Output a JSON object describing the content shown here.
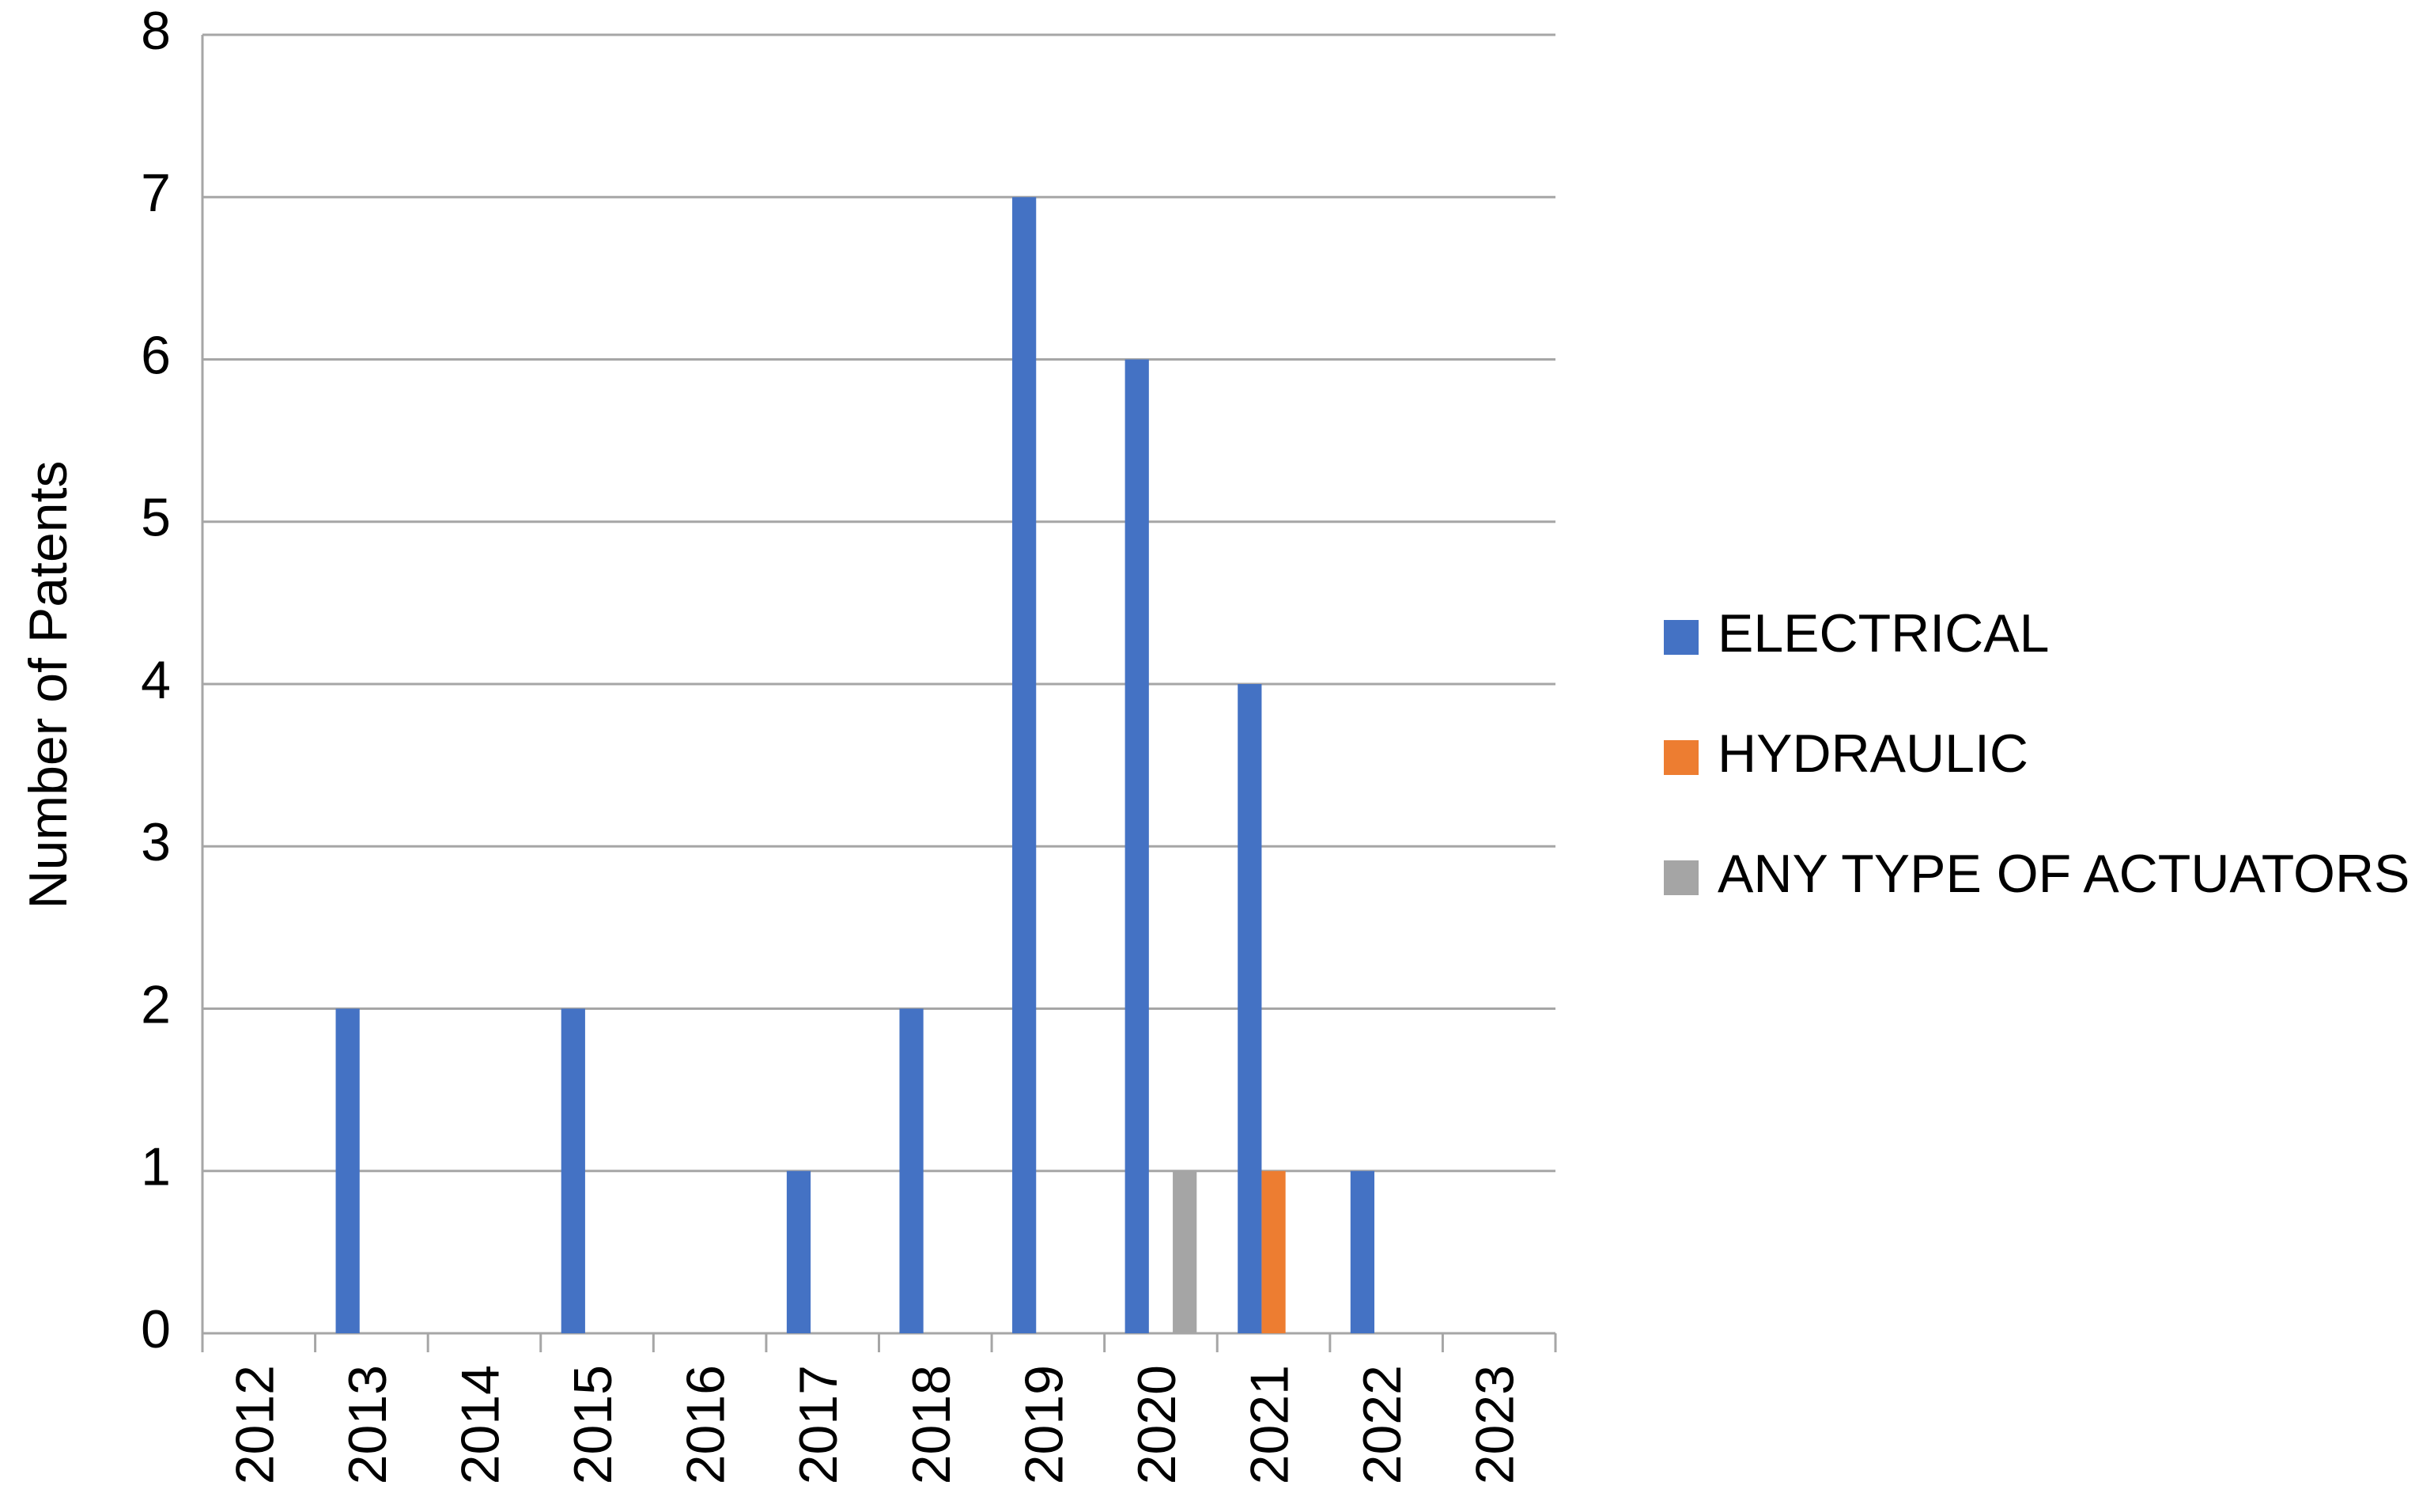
{
  "chart_data": {
    "type": "bar",
    "y_label": "Number of Patents",
    "categories": [
      "2012",
      "2013",
      "2014",
      "2015",
      "2016",
      "2017",
      "2018",
      "2019",
      "2020",
      "2021",
      "2022",
      "2023"
    ],
    "series": [
      {
        "name": "ELECTRICAL",
        "color": "#4472c4",
        "values": [
          0,
          2,
          0,
          2,
          0,
          1,
          2,
          7,
          6,
          4,
          1,
          0
        ]
      },
      {
        "name": "HYDRAULIC",
        "color": "#ed7d31",
        "values": [
          0,
          0,
          0,
          0,
          0,
          0,
          0,
          0,
          0,
          1,
          0,
          0
        ]
      },
      {
        "name": "ANY TYPE OF ACTUATORS",
        "color": "#a5a5a5",
        "values": [
          0,
          0,
          0,
          0,
          0,
          0,
          0,
          0,
          1,
          0,
          0,
          0
        ]
      }
    ],
    "ylim": [
      0,
      8
    ],
    "yticks": [
      0,
      1,
      2,
      3,
      4,
      5,
      6,
      7,
      8
    ],
    "grid": true,
    "legend": "right"
  }
}
